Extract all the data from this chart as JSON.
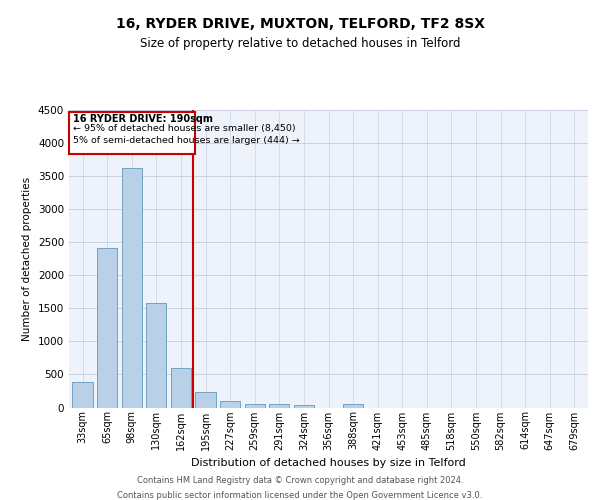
{
  "title": "16, RYDER DRIVE, MUXTON, TELFORD, TF2 8SX",
  "subtitle": "Size of property relative to detached houses in Telford",
  "xlabel": "Distribution of detached houses by size in Telford",
  "ylabel": "Number of detached properties",
  "categories": [
    "33sqm",
    "65sqm",
    "98sqm",
    "130sqm",
    "162sqm",
    "195sqm",
    "227sqm",
    "259sqm",
    "291sqm",
    "324sqm",
    "356sqm",
    "388sqm",
    "421sqm",
    "453sqm",
    "485sqm",
    "518sqm",
    "550sqm",
    "582sqm",
    "614sqm",
    "647sqm",
    "679sqm"
  ],
  "values": [
    380,
    2420,
    3620,
    1580,
    590,
    230,
    105,
    58,
    55,
    40,
    0,
    55,
    0,
    0,
    0,
    0,
    0,
    0,
    0,
    0,
    0
  ],
  "bar_color": "#b8d0e8",
  "bar_edge_color": "#6699bb",
  "property_line_x": 4.5,
  "annotation_line1": "16 RYDER DRIVE: 190sqm",
  "annotation_line2": "← 95% of detached houses are smaller (8,450)",
  "annotation_line3": "5% of semi-detached houses are larger (444) →",
  "vline_color": "#cc0000",
  "annotation_box_color": "#cc0000",
  "ylim": [
    0,
    4500
  ],
  "background_color": "#eef2fa",
  "grid_color": "#c8d0e4",
  "footer_line1": "Contains HM Land Registry data © Crown copyright and database right 2024.",
  "footer_line2": "Contains public sector information licensed under the Open Government Licence v3.0."
}
